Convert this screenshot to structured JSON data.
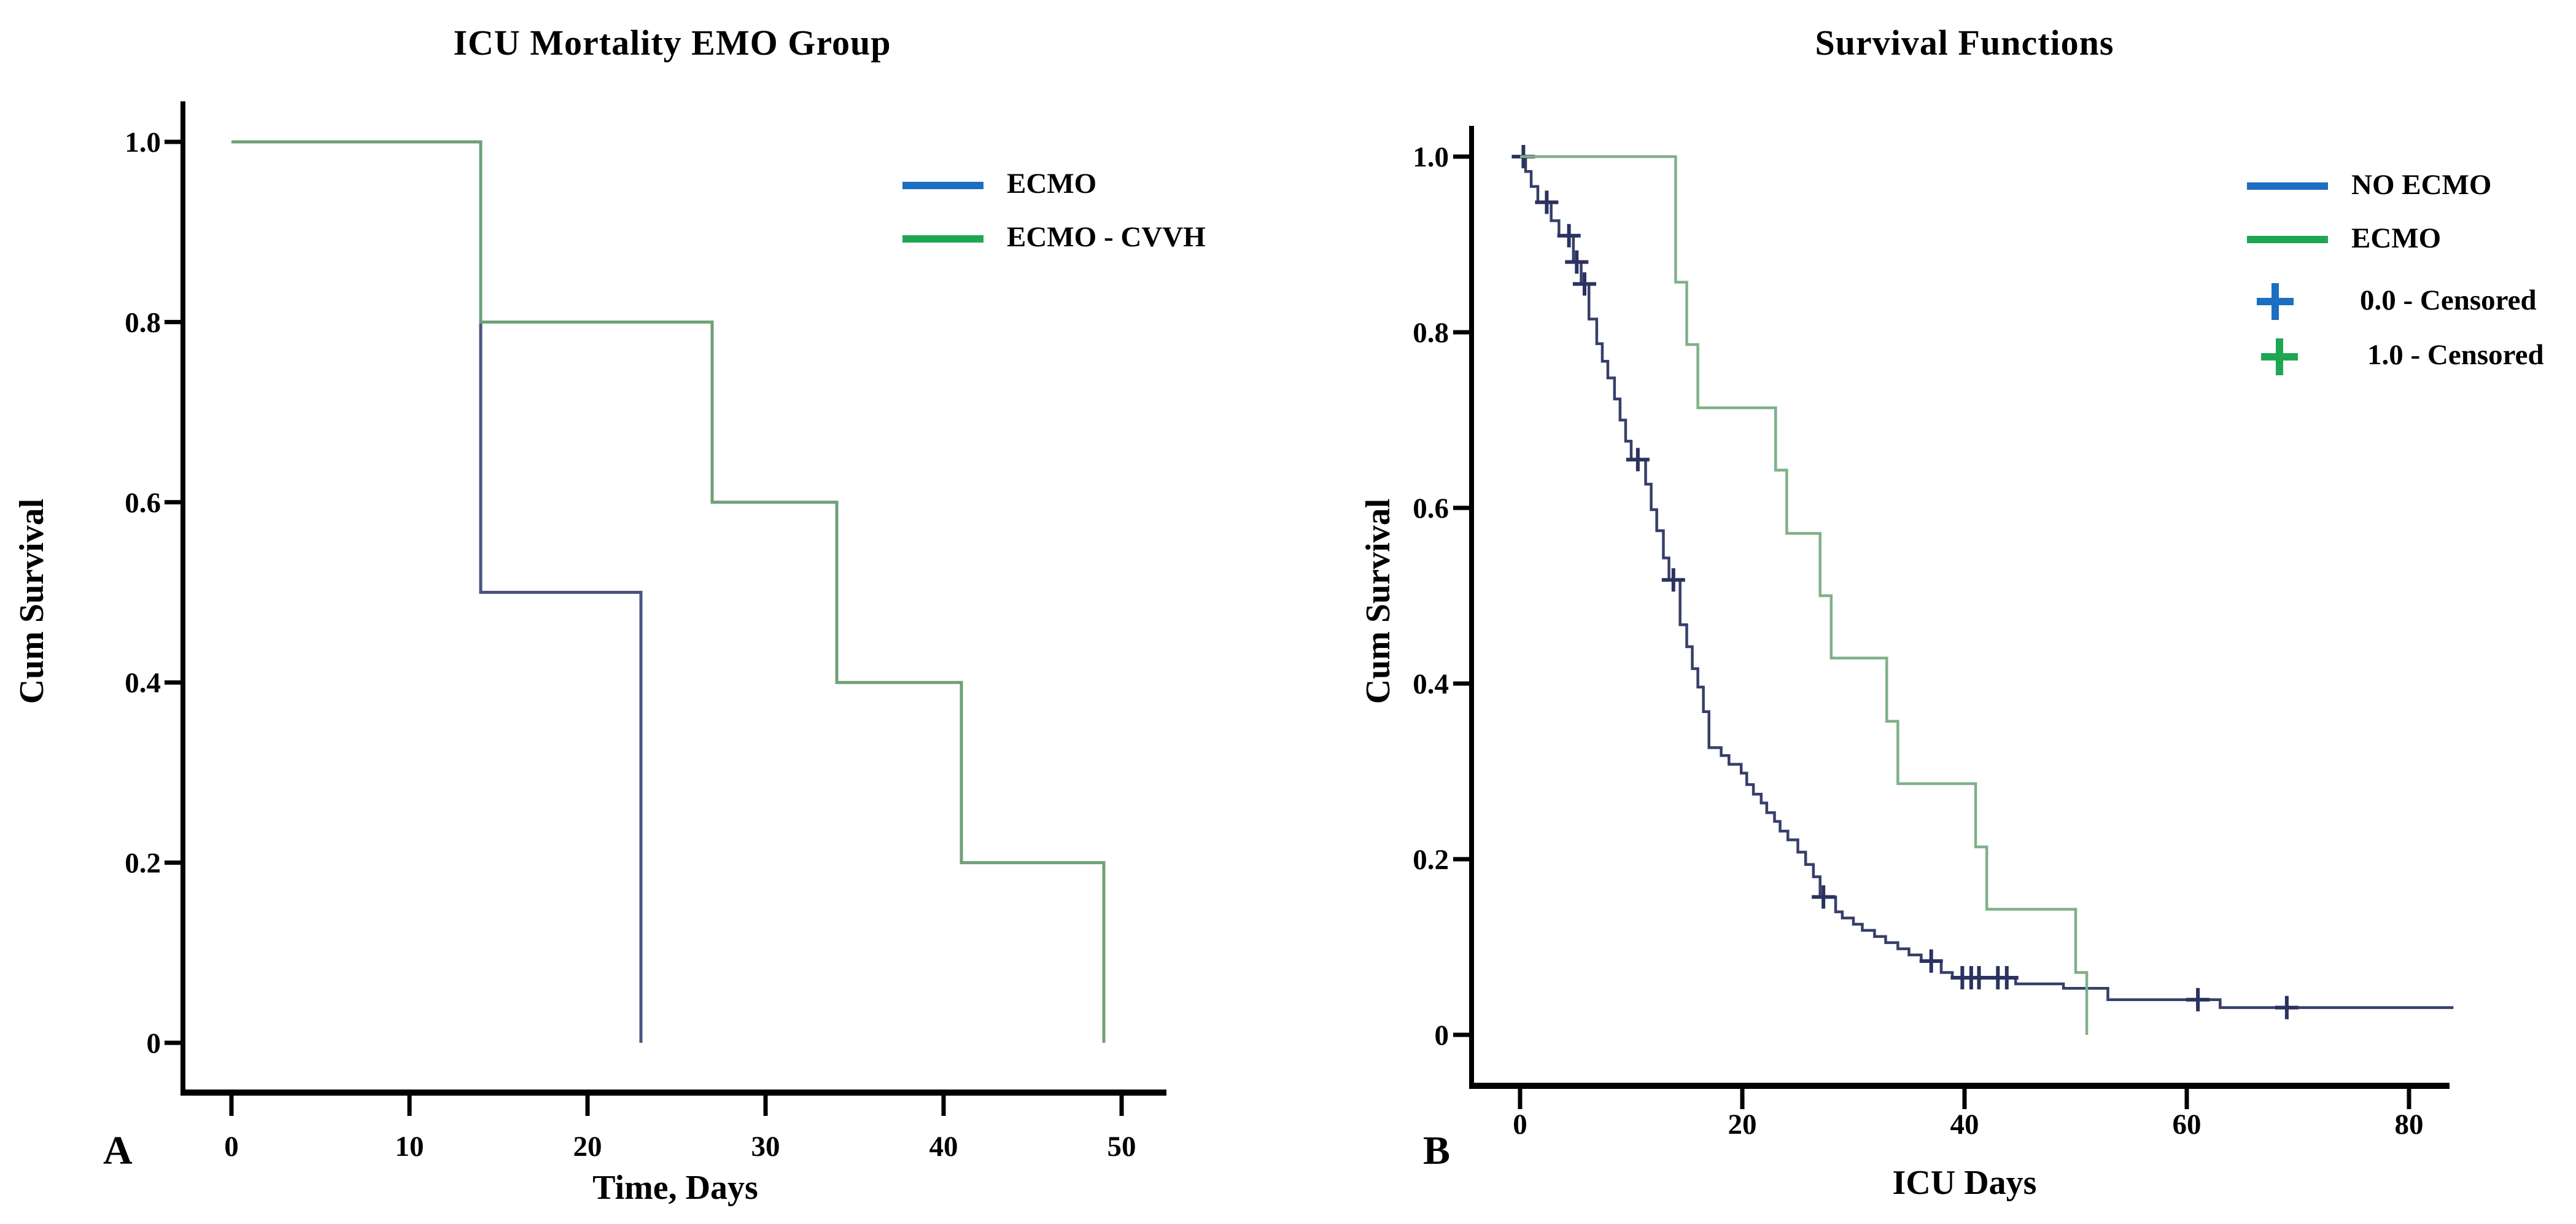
{
  "figure": {
    "background": "#ffffff",
    "panel_letters": {
      "a": "A",
      "b": "B"
    }
  },
  "colors": {
    "legend_blue": "#1b6ec2",
    "legend_green": "#1fa653",
    "curve_a_blue": "#4c5480",
    "curve_a_green": "#6fa077",
    "curve_b_blue": "#363f6a",
    "curve_b_green": "#7fb089",
    "censor_blue": "#2a3260",
    "axis": "#000000"
  },
  "chart_data": [
    {
      "panel_label": "A",
      "type": "line",
      "style": "kaplan-meier-step",
      "title": "ICU Mortality EMO Group",
      "xlabel": "Time, Days",
      "ylabel": "Cum Survival",
      "xlim": [
        0,
        52
      ],
      "ylim": [
        0,
        1.0
      ],
      "xticks": [
        0,
        10,
        20,
        30,
        40,
        50
      ],
      "ytick_values": [
        1.0,
        0.8,
        0.6,
        0.4,
        0.2,
        0
      ],
      "ytick_labels": [
        "1.0",
        "0.8",
        "0.6",
        "0.4",
        "0.2",
        "0"
      ],
      "grid": false,
      "legend_position": "upper right",
      "legend": [
        {
          "label": "ECMO",
          "marker": "line",
          "color": "#1b6ec2"
        },
        {
          "label": "ECMO - CVVH",
          "marker": "line",
          "color": "#1fa653"
        }
      ],
      "series": [
        {
          "name": "ECMO",
          "color": "#4c5480",
          "steps": [
            [
              0,
              1.0
            ],
            [
              14,
              0.5
            ],
            [
              23,
              0.0
            ]
          ],
          "end_day": 23,
          "censored": []
        },
        {
          "name": "ECMO - CVVH",
          "color": "#6fa077",
          "steps": [
            [
              0,
              1.0
            ],
            [
              14,
              0.8
            ],
            [
              27,
              0.6
            ],
            [
              34,
              0.4
            ],
            [
              41,
              0.2
            ],
            [
              49,
              0.0
            ]
          ],
          "end_day": 49,
          "censored": []
        }
      ]
    },
    {
      "panel_label": "B",
      "type": "line",
      "style": "kaplan-meier-step",
      "title": "Survival Functions",
      "xlabel": "ICU Days",
      "ylabel": "Cum Survival",
      "xlim": [
        0,
        84
      ],
      "ylim": [
        0,
        1.0
      ],
      "xticks": [
        0,
        20,
        40,
        60,
        80
      ],
      "ytick_values": [
        1.0,
        0.8,
        0.6,
        0.4,
        0.2,
        0
      ],
      "ytick_labels": [
        "1.0",
        "0.8",
        "0.6",
        "0.4",
        "0.2",
        "0"
      ],
      "grid": false,
      "legend_position": "upper right",
      "legend": [
        {
          "label": "NO ECMO",
          "marker": "line",
          "color": "#1b6ec2"
        },
        {
          "label": "ECMO",
          "marker": "line",
          "color": "#1fa653"
        },
        {
          "label": "0.0 - Censored",
          "marker": "plus",
          "color": "#1b6ec2"
        },
        {
          "label": "1.0 - Censored",
          "marker": "plus",
          "color": "#1fa653"
        }
      ],
      "series": [
        {
          "name": "NO ECMO",
          "color": "#363f6a",
          "censor_color": "#2a3260",
          "steps": [
            [
              0,
              1.0
            ],
            [
              0.5,
              0.983
            ],
            [
              1,
              0.966
            ],
            [
              1.6,
              0.948
            ],
            [
              2.8,
              0.927
            ],
            [
              3.5,
              0.91
            ],
            [
              4.8,
              0.88
            ],
            [
              5.5,
              0.855
            ],
            [
              6.2,
              0.815
            ],
            [
              6.9,
              0.787
            ],
            [
              7.4,
              0.767
            ],
            [
              7.9,
              0.748
            ],
            [
              8.5,
              0.724
            ],
            [
              9,
              0.7
            ],
            [
              9.5,
              0.676
            ],
            [
              10,
              0.655
            ],
            [
              11.3,
              0.627
            ],
            [
              11.8,
              0.598
            ],
            [
              12.3,
              0.574
            ],
            [
              12.9,
              0.543
            ],
            [
              13.4,
              0.518
            ],
            [
              14.4,
              0.467
            ],
            [
              15,
              0.442
            ],
            [
              15.5,
              0.417
            ],
            [
              16,
              0.396
            ],
            [
              16.5,
              0.368
            ],
            [
              17,
              0.327
            ],
            [
              18.1,
              0.318
            ],
            [
              18.8,
              0.308
            ],
            [
              19.9,
              0.298
            ],
            [
              20.4,
              0.285
            ],
            [
              21,
              0.274
            ],
            [
              21.7,
              0.264
            ],
            [
              22.2,
              0.253
            ],
            [
              22.9,
              0.243
            ],
            [
              23.4,
              0.232
            ],
            [
              24.1,
              0.222
            ],
            [
              25,
              0.208
            ],
            [
              25.7,
              0.194
            ],
            [
              26.4,
              0.18
            ],
            [
              27,
              0.157
            ],
            [
              28.4,
              0.14
            ],
            [
              29,
              0.133
            ],
            [
              30,
              0.126
            ],
            [
              30.8,
              0.119
            ],
            [
              31.9,
              0.112
            ],
            [
              32.9,
              0.105
            ],
            [
              34,
              0.098
            ],
            [
              35,
              0.091
            ],
            [
              36.1,
              0.084
            ],
            [
              37.9,
              0.071
            ],
            [
              38.9,
              0.065
            ],
            [
              44.6,
              0.058
            ],
            [
              48.9,
              0.053
            ],
            [
              52.9,
              0.04
            ],
            [
              63,
              0.031
            ]
          ],
          "end_day": 84,
          "censored": [
            [
              0.3,
              1.0
            ],
            [
              2.4,
              0.948
            ],
            [
              4.4,
              0.91
            ],
            [
              5.1,
              0.88
            ],
            [
              5.8,
              0.855
            ],
            [
              10.6,
              0.655
            ],
            [
              13.8,
              0.518
            ],
            [
              27.3,
              0.157
            ],
            [
              37,
              0.084
            ],
            [
              39.8,
              0.065
            ],
            [
              40.6,
              0.065
            ],
            [
              41.3,
              0.065
            ],
            [
              43,
              0.065
            ],
            [
              43.8,
              0.065
            ],
            [
              61,
              0.04
            ],
            [
              69,
              0.031
            ]
          ]
        },
        {
          "name": "ECMO",
          "color": "#7fb089",
          "steps": [
            [
              0,
              1.0
            ],
            [
              14,
              0.857
            ],
            [
              15,
              0.786
            ],
            [
              16,
              0.714
            ],
            [
              23,
              0.643
            ],
            [
              24,
              0.571
            ],
            [
              27,
              0.5
            ],
            [
              28,
              0.429
            ],
            [
              33,
              0.357
            ],
            [
              34,
              0.286
            ],
            [
              41,
              0.214
            ],
            [
              42,
              0.143
            ],
            [
              50,
              0.071
            ],
            [
              51,
              0.0
            ]
          ],
          "end_day": 51,
          "censored": []
        }
      ]
    }
  ]
}
